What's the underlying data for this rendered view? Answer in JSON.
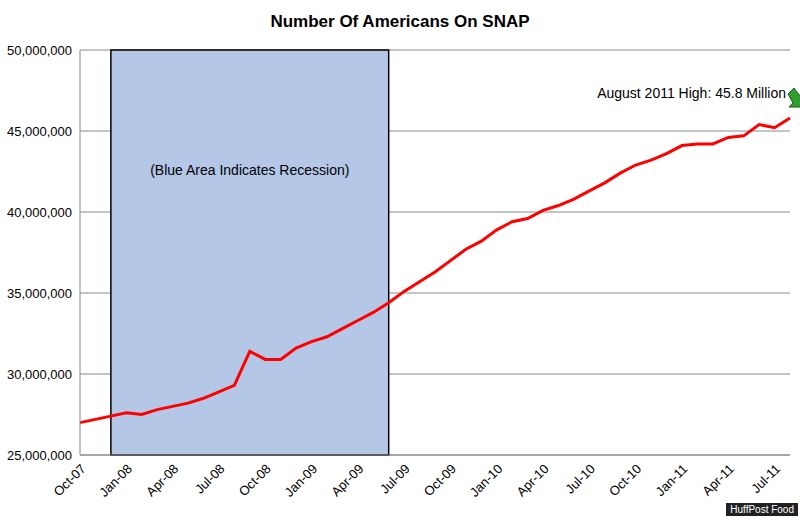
{
  "chart_data": {
    "type": "line",
    "title": "Number Of Americans On SNAP",
    "categories": [
      "Oct-07",
      null,
      null,
      "Jan-08",
      null,
      null,
      "Apr-08",
      null,
      null,
      "Jul-08",
      null,
      null,
      "Oct-08",
      null,
      null,
      "Jan-09",
      null,
      null,
      "Apr-09",
      null,
      null,
      "Jul-09",
      null,
      null,
      "Oct-09",
      null,
      null,
      "Jan-10",
      null,
      null,
      "Apr-10",
      null,
      null,
      "Jul-10",
      null,
      null,
      "Oct-10",
      null,
      null,
      "Jan-11",
      null,
      null,
      "Apr-11",
      null,
      null,
      "Jul-11",
      null
    ],
    "values": [
      27000000,
      27200000,
      27400000,
      27600000,
      27500000,
      27800000,
      28000000,
      28200000,
      28500000,
      28900000,
      29300000,
      31400000,
      30900000,
      30900000,
      31600000,
      32000000,
      32300000,
      32800000,
      33300000,
      33800000,
      34400000,
      35100000,
      35700000,
      36300000,
      37000000,
      37700000,
      38200000,
      38900000,
      39400000,
      39600000,
      40100000,
      40400000,
      40800000,
      41300000,
      41800000,
      42400000,
      42900000,
      43200000,
      43600000,
      44100000,
      44200000,
      44200000,
      44600000,
      44700000,
      45400000,
      45200000,
      45800000
    ],
    "color": "#ff0000",
    "ylim": [
      25000000,
      50000000
    ],
    "yticks": [
      {
        "value": 25000000,
        "label": "25,000,000"
      },
      {
        "value": 30000000,
        "label": "30,000,000"
      },
      {
        "value": 35000000,
        "label": "35,000,000"
      },
      {
        "value": 40000000,
        "label": "40,000,000"
      },
      {
        "value": 45000000,
        "label": "45,000,000"
      },
      {
        "value": 50000000,
        "label": "50,000,000"
      }
    ],
    "grid": true,
    "shaded_region": {
      "from": 2,
      "to": 20,
      "label": "(Blue Area Indicates Recession)",
      "color": "#b4c7e7"
    },
    "annotation": {
      "text": "August 2011 High: 45.8 Million",
      "x": 46,
      "y": 45800000,
      "color": "#2e9e2e"
    },
    "source": "HuffPost Food"
  }
}
